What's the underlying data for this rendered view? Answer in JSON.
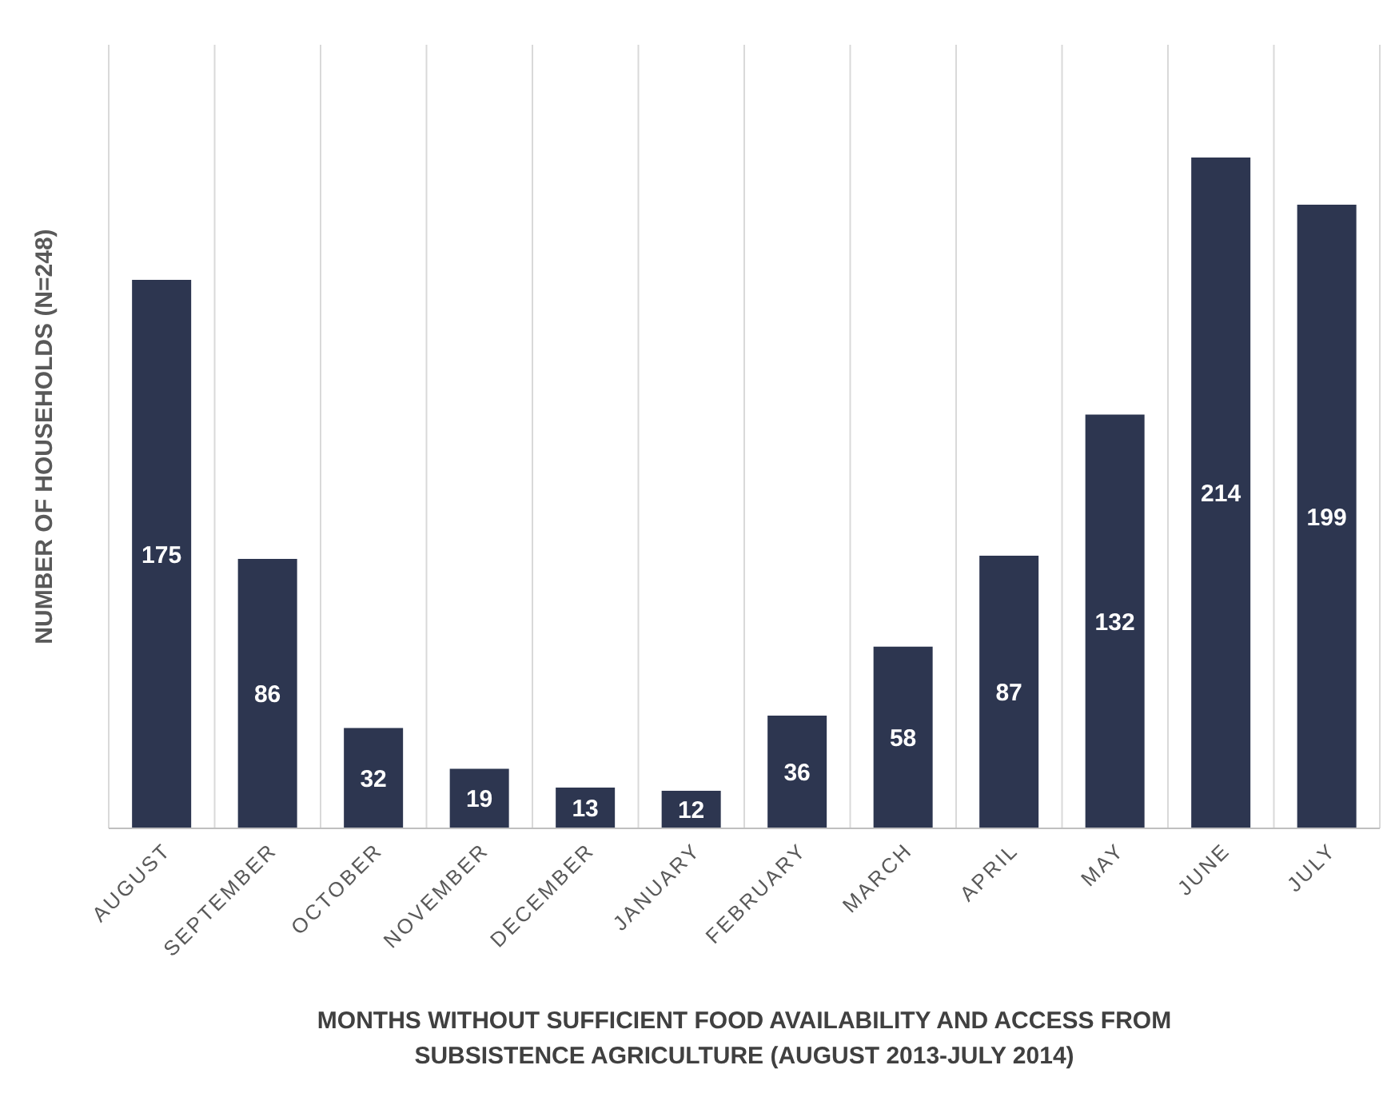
{
  "chart_data": {
    "type": "bar",
    "xlabel": "MONTHS WITHOUT SUFFICIENT FOOD AVAILABILITY AND ACCESS FROM SUBSISTENCE AGRICULTURE (AUGUST 2013-JULY 2014)",
    "ylabel": "NUMBER OF HOUSEHOLDS (N=248)",
    "categories": [
      "AUGUST",
      "SEPTEMBER",
      "OCTOBER",
      "NOVEMBER",
      "DECEMBER",
      "JANUARY",
      "FEBRUARY",
      "MARCH",
      "APRIL",
      "MAY",
      "JUNE",
      "JULY"
    ],
    "values": [
      175,
      86,
      32,
      19,
      13,
      12,
      36,
      58,
      87,
      132,
      214,
      199
    ],
    "color": "#2d3650",
    "ylim": [
      0,
      250
    ],
    "tick_labels": "x",
    "grid": "x",
    "data_labels": true
  }
}
